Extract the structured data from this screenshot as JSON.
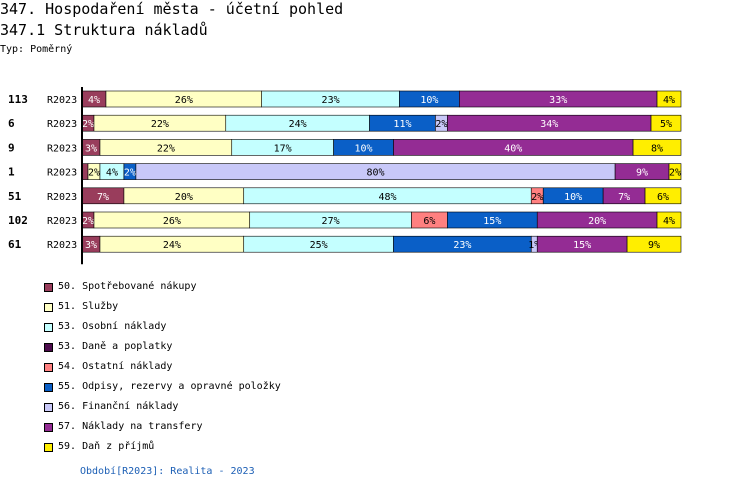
{
  "page": {
    "title": "347. Hospodaření města - účetní pohled",
    "subtitle": "347.1 Struktura nákladů",
    "type_label": "Typ: Poměrný",
    "footer": "Období[R2023]: Realita - 2023"
  },
  "colors": {
    "50": "#993d5c",
    "51": "#ffffc4",
    "53o": "#c4ffff",
    "53d": "#4d0d4d",
    "54": "#ff8080",
    "55": "#0a5fc7",
    "56": "#c8c8f8",
    "57": "#942c94",
    "59": "#ffee00"
  },
  "chart_data": {
    "type": "bar",
    "orientation": "horizontal",
    "stacked": true,
    "normalized": true,
    "title": "347.1 Struktura nákladů",
    "rows": [
      {
        "id": "113",
        "period": "R2023",
        "segments": [
          {
            "key": "50",
            "value": 4,
            "label": "4%"
          },
          {
            "key": "51",
            "value": 26,
            "label": "26%"
          },
          {
            "key": "53o",
            "value": 23,
            "label": "23%"
          },
          {
            "key": "55",
            "value": 10,
            "label": "10%"
          },
          {
            "key": "57",
            "value": 33,
            "label": "33%"
          },
          {
            "key": "59",
            "value": 4,
            "label": "4%"
          }
        ]
      },
      {
        "id": "6",
        "period": "R2023",
        "segments": [
          {
            "key": "50",
            "value": 2,
            "label": "2%"
          },
          {
            "key": "51",
            "value": 22,
            "label": "22%"
          },
          {
            "key": "53o",
            "value": 24,
            "label": "24%"
          },
          {
            "key": "55",
            "value": 11,
            "label": "11%"
          },
          {
            "key": "56",
            "value": 2,
            "label": "2%"
          },
          {
            "key": "57",
            "value": 34,
            "label": "34%"
          },
          {
            "key": "59",
            "value": 5,
            "label": "5%"
          }
        ]
      },
      {
        "id": "9",
        "period": "R2023",
        "segments": [
          {
            "key": "50",
            "value": 3,
            "label": "3%"
          },
          {
            "key": "51",
            "value": 22,
            "label": "22%"
          },
          {
            "key": "53o",
            "value": 17,
            "label": "17%"
          },
          {
            "key": "55",
            "value": 10,
            "label": "10%"
          },
          {
            "key": "57",
            "value": 40,
            "label": "40%"
          },
          {
            "key": "59",
            "value": 8,
            "label": "8%"
          }
        ]
      },
      {
        "id": "1",
        "period": "R2023",
        "segments": [
          {
            "key": "50",
            "value": 1,
            "label": ""
          },
          {
            "key": "51",
            "value": 2,
            "label": "2%"
          },
          {
            "key": "53o",
            "value": 4,
            "label": "4%"
          },
          {
            "key": "55",
            "value": 2,
            "label": "2%"
          },
          {
            "key": "56",
            "value": 80,
            "label": "80%"
          },
          {
            "key": "57",
            "value": 9,
            "label": "9%"
          },
          {
            "key": "59",
            "value": 2,
            "label": "2%"
          }
        ]
      },
      {
        "id": "51",
        "period": "R2023",
        "segments": [
          {
            "key": "50",
            "value": 7,
            "label": "7%"
          },
          {
            "key": "51",
            "value": 20,
            "label": "20%"
          },
          {
            "key": "53o",
            "value": 48,
            "label": "48%"
          },
          {
            "key": "54",
            "value": 2,
            "label": "2%"
          },
          {
            "key": "55",
            "value": 10,
            "label": "10%"
          },
          {
            "key": "57",
            "value": 7,
            "label": "7%"
          },
          {
            "key": "59",
            "value": 6,
            "label": "6%"
          }
        ]
      },
      {
        "id": "102",
        "period": "R2023",
        "segments": [
          {
            "key": "50",
            "value": 2,
            "label": "2%"
          },
          {
            "key": "51",
            "value": 26,
            "label": "26%"
          },
          {
            "key": "53o",
            "value": 27,
            "label": "27%"
          },
          {
            "key": "54",
            "value": 6,
            "label": "6%"
          },
          {
            "key": "55",
            "value": 15,
            "label": "15%"
          },
          {
            "key": "57",
            "value": 20,
            "label": "20%"
          },
          {
            "key": "59",
            "value": 4,
            "label": "4%"
          }
        ]
      },
      {
        "id": "61",
        "period": "R2023",
        "segments": [
          {
            "key": "50",
            "value": 3,
            "label": "3%"
          },
          {
            "key": "51",
            "value": 24,
            "label": "24%"
          },
          {
            "key": "53o",
            "value": 25,
            "label": "25%"
          },
          {
            "key": "55",
            "value": 23,
            "label": "23%"
          },
          {
            "key": "56",
            "value": 1,
            "label": "1%"
          },
          {
            "key": "57",
            "value": 15,
            "label": "15%"
          },
          {
            "key": "59",
            "value": 9,
            "label": "9%"
          }
        ]
      }
    ],
    "legend": [
      {
        "key": "50",
        "label": "50. Spotřebované nákupy"
      },
      {
        "key": "51",
        "label": "51. Služby"
      },
      {
        "key": "53o",
        "label": "53. Osobní náklady"
      },
      {
        "key": "53d",
        "label": "53. Daně a poplatky"
      },
      {
        "key": "54",
        "label": "54. Ostatní náklady"
      },
      {
        "key": "55",
        "label": "55. Odpisy, rezervy a opravné položky"
      },
      {
        "key": "56",
        "label": "56. Finanční náklady"
      },
      {
        "key": "57",
        "label": "57. Náklady na transfery"
      },
      {
        "key": "59",
        "label": "59. Daň z příjmů"
      }
    ]
  }
}
